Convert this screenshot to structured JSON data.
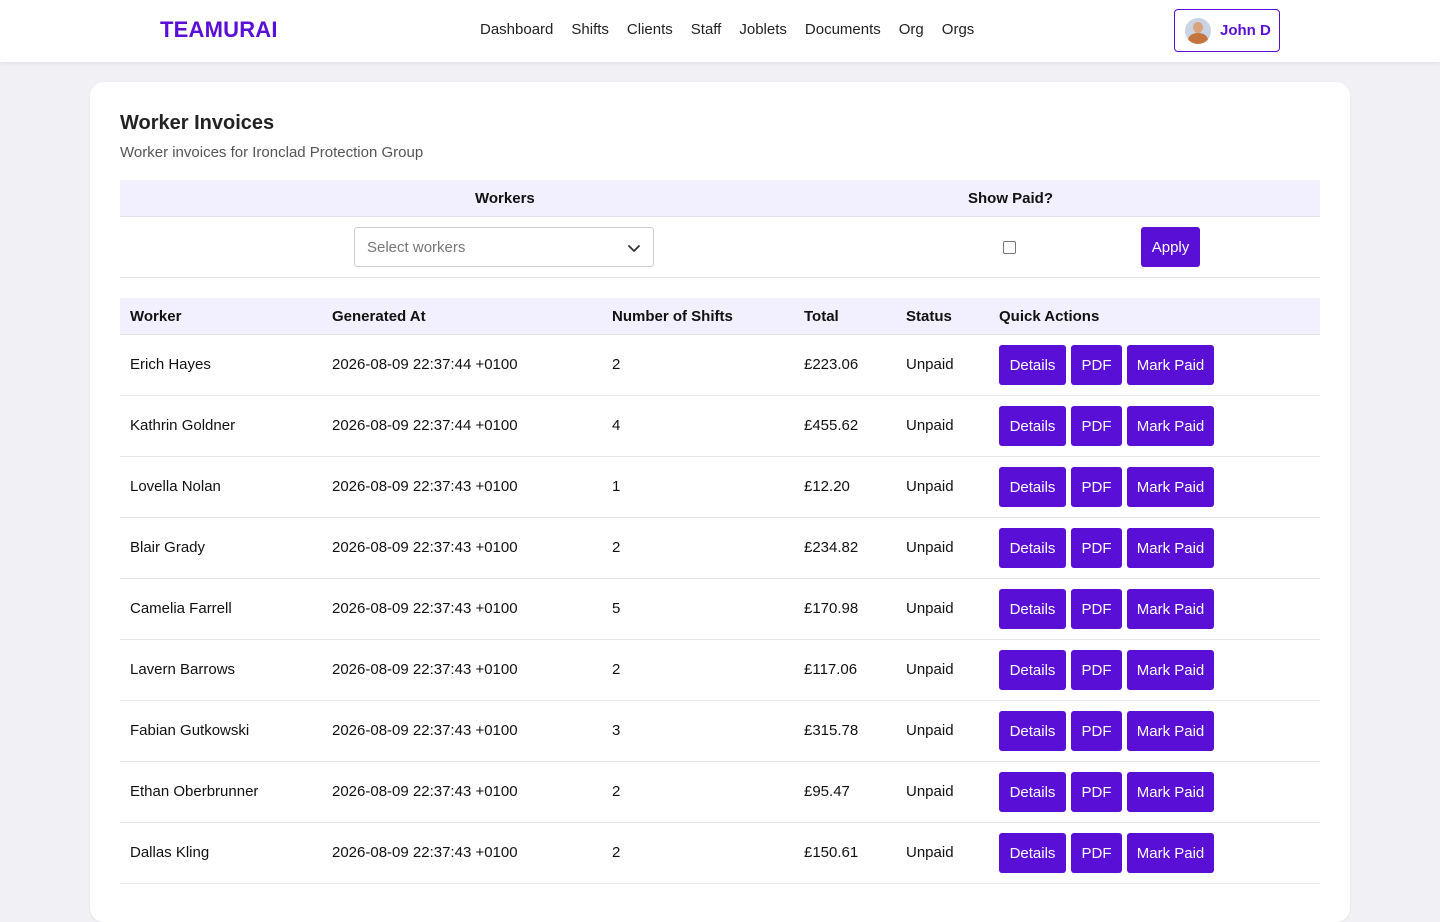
{
  "brand": {
    "logo": "TEAMURAI"
  },
  "nav": [
    "Dashboard",
    "Shifts",
    "Clients",
    "Staff",
    "Joblets",
    "Documents",
    "Org",
    "Orgs"
  ],
  "user": {
    "name": "John D"
  },
  "page": {
    "title": "Worker Invoices",
    "subtitle": "Worker invoices for Ironclad Protection Group"
  },
  "filters": {
    "workers_label": "Workers",
    "show_paid_label": "Show Paid?",
    "workers_placeholder": "Select workers",
    "show_paid_checked": false,
    "apply_label": "Apply"
  },
  "table": {
    "headers": [
      "Worker",
      "Generated At",
      "Number of Shifts",
      "Total",
      "Status",
      "Quick Actions"
    ],
    "action_labels": {
      "details": "Details",
      "pdf": "PDF",
      "mark_paid": "Mark Paid"
    },
    "rows": [
      {
        "worker": "Erich Hayes",
        "generated_at": "2026-08-09 22:37:44 +0100",
        "shifts": "2",
        "total": "£223.06",
        "status": "Unpaid"
      },
      {
        "worker": "Kathrin Goldner",
        "generated_at": "2026-08-09 22:37:44 +0100",
        "shifts": "4",
        "total": "£455.62",
        "status": "Unpaid"
      },
      {
        "worker": "Lovella Nolan",
        "generated_at": "2026-08-09 22:37:43 +0100",
        "shifts": "1",
        "total": "£12.20",
        "status": "Unpaid"
      },
      {
        "worker": "Blair Grady",
        "generated_at": "2026-08-09 22:37:43 +0100",
        "shifts": "2",
        "total": "£234.82",
        "status": "Unpaid"
      },
      {
        "worker": "Camelia Farrell",
        "generated_at": "2026-08-09 22:37:43 +0100",
        "shifts": "5",
        "total": "£170.98",
        "status": "Unpaid"
      },
      {
        "worker": "Lavern Barrows",
        "generated_at": "2026-08-09 22:37:43 +0100",
        "shifts": "2",
        "total": "£117.06",
        "status": "Unpaid"
      },
      {
        "worker": "Fabian Gutkowski",
        "generated_at": "2026-08-09 22:37:43 +0100",
        "shifts": "3",
        "total": "£315.78",
        "status": "Unpaid"
      },
      {
        "worker": "Ethan Oberbrunner",
        "generated_at": "2026-08-09 22:37:43 +0100",
        "shifts": "2",
        "total": "£95.47",
        "status": "Unpaid"
      },
      {
        "worker": "Dallas Kling",
        "generated_at": "2026-08-09 22:37:43 +0100",
        "shifts": "2",
        "total": "£150.61",
        "status": "Unpaid"
      }
    ]
  },
  "colors": {
    "accent": "#5a0fd6",
    "header_bg": "#f2effe",
    "page_bg": "#f1f1f5"
  }
}
